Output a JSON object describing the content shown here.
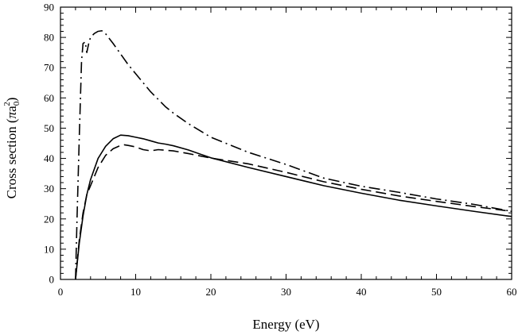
{
  "chart_data": {
    "type": "line",
    "title": "",
    "xlabel": "Energy (eV)",
    "ylabel_main": "Cross section (",
    "ylabel_pi": "π",
    "ylabel_a": "a",
    "ylabel_sub": "0",
    "ylabel_sup": "2",
    "ylabel_close": ")",
    "xlim": [
      0,
      60
    ],
    "ylim": [
      0,
      90
    ],
    "xticks": [
      0,
      10,
      20,
      30,
      40,
      50,
      60
    ],
    "yticks": [
      0,
      10,
      20,
      30,
      40,
      50,
      60,
      70,
      80,
      90
    ],
    "grid": false,
    "series": [
      {
        "style": "solid",
        "x": [
          2.0,
          2.5,
          3.0,
          3.5,
          4.0,
          5.0,
          6.0,
          7.0,
          8.0,
          9.0,
          10.0,
          11.0,
          12.0,
          13.0,
          14.0,
          15.0,
          17.0,
          20.0,
          25.0,
          30.0,
          35.0,
          40.0,
          45.0,
          50.0,
          55.0,
          60.0
        ],
        "y": [
          0,
          12,
          21,
          28,
          33,
          40,
          44,
          46.5,
          47.7,
          47.5,
          47,
          46.5,
          45.8,
          45.1,
          44.7,
          44.2,
          42.8,
          40.2,
          37,
          34,
          31,
          28.5,
          26.2,
          24.3,
          22.5,
          20.8
        ]
      },
      {
        "style": "dashed",
        "x": [
          2.0,
          2.5,
          3.0,
          3.5,
          4.0,
          5.0,
          6.0,
          7.0,
          8.0,
          8.5,
          9.0,
          10.0,
          11.0,
          12.0,
          13.0,
          15.0,
          17.0,
          20.0,
          25.0,
          30.0,
          35.0,
          40.0,
          45.0,
          50.0,
          55.0,
          60.0
        ],
        "y": [
          0,
          13,
          22,
          28,
          31,
          37,
          41,
          43.2,
          44.3,
          44.5,
          44.3,
          43.8,
          42.9,
          42.5,
          42.9,
          42.5,
          41.6,
          40.1,
          38.2,
          35.4,
          32.3,
          29.8,
          27.6,
          25.8,
          24.1,
          22.5
        ]
      },
      {
        "style": "dashdot",
        "x": [
          2.0,
          2.2,
          2.5,
          2.8,
          3.0,
          3.3,
          3.5,
          3.8,
          4.0,
          4.5,
          5.0,
          5.5,
          6.0,
          7.0,
          8.0,
          9.0,
          10.0,
          11.0,
          12.0,
          13.0,
          14.0,
          15.0,
          17.0,
          20.0,
          25.0,
          30.0,
          35.0,
          40.0,
          45.0,
          50.0,
          55.0,
          60.0
        ],
        "y": [
          0,
          20,
          47,
          72,
          78,
          78.5,
          75,
          78.5,
          80,
          81.3,
          82,
          82.2,
          81.2,
          78,
          74.5,
          71,
          68,
          65,
          62,
          59.5,
          57,
          55,
          51.5,
          47,
          42,
          38,
          33.5,
          30.8,
          28.8,
          26.6,
          24.8,
          22.5
        ]
      }
    ]
  }
}
